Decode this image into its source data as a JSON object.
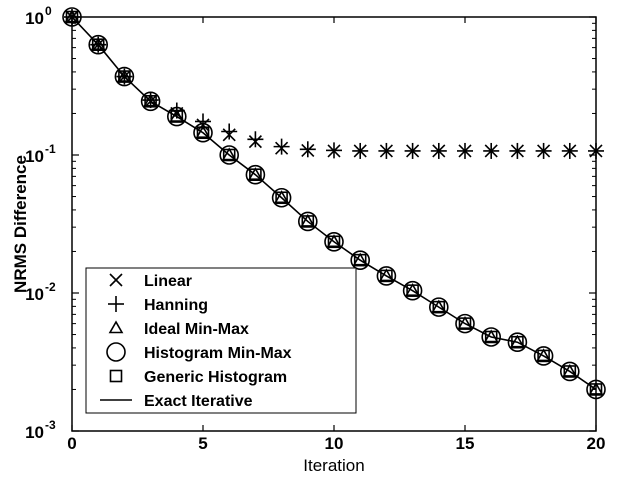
{
  "chart_data": {
    "type": "line",
    "xlabel": "Iteration",
    "ylabel": "NRMS Difference",
    "xlim": [
      0,
      20
    ],
    "ylim": [
      0.001,
      1
    ],
    "yscale": "log",
    "xticks": [
      0,
      5,
      10,
      15,
      20
    ],
    "xtick_labels": [
      "0",
      "5",
      "10",
      "15",
      "20"
    ],
    "yticks": [
      0.001,
      0.01,
      0.1,
      1
    ],
    "ytick_labels": [
      {
        "base": "10",
        "exp": "-3"
      },
      {
        "base": "10",
        "exp": "-2"
      },
      {
        "base": "10",
        "exp": "-1"
      },
      {
        "base": "10",
        "exp": "0"
      }
    ],
    "grid": false,
    "legend_position": "bottom-left",
    "x": [
      0,
      1,
      2,
      3,
      4,
      5,
      6,
      7,
      8,
      9,
      10,
      11,
      12,
      13,
      14,
      15,
      16,
      17,
      18,
      19,
      20
    ],
    "series": [
      {
        "name": "Linear",
        "marker": "x",
        "values": [
          1.0,
          0.63,
          0.37,
          0.245,
          0.2,
          0.165,
          0.14,
          0.125,
          0.112,
          0.108,
          0.107,
          0.107,
          0.107,
          0.107,
          0.107,
          0.107,
          0.107,
          0.107,
          0.107,
          0.107,
          0.107
        ]
      },
      {
        "name": "Hanning",
        "marker": "+",
        "values": [
          1.0,
          0.63,
          0.37,
          0.25,
          0.21,
          0.175,
          0.148,
          0.13,
          0.115,
          0.11,
          0.108,
          0.107,
          0.107,
          0.107,
          0.107,
          0.107,
          0.107,
          0.107,
          0.107,
          0.107,
          0.107
        ]
      },
      {
        "name": "Ideal Min-Max",
        "marker": "triangle",
        "values": [
          1.0,
          0.63,
          0.37,
          0.245,
          0.19,
          0.145,
          0.1,
          0.072,
          0.049,
          0.033,
          0.0235,
          0.0173,
          0.0133,
          0.0104,
          0.0079,
          0.006,
          0.0048,
          0.0044,
          0.0035,
          0.0027,
          0.002
        ]
      },
      {
        "name": "Histogram Min-Max",
        "marker": "circle",
        "values": [
          1.0,
          0.63,
          0.37,
          0.245,
          0.19,
          0.145,
          0.1,
          0.072,
          0.049,
          0.033,
          0.0235,
          0.0173,
          0.0133,
          0.0104,
          0.0079,
          0.006,
          0.0048,
          0.0044,
          0.0035,
          0.0027,
          0.002
        ]
      },
      {
        "name": "Generic Histogram",
        "marker": "square",
        "values": [
          1.0,
          0.63,
          0.37,
          0.245,
          0.19,
          0.145,
          0.1,
          0.072,
          0.049,
          0.033,
          0.0235,
          0.0173,
          0.0133,
          0.0104,
          0.0079,
          0.006,
          0.0048,
          0.0044,
          0.0035,
          0.0027,
          0.002
        ]
      },
      {
        "name": "Exact Iterative",
        "marker": "line",
        "values": [
          1.0,
          0.63,
          0.37,
          0.245,
          0.19,
          0.145,
          0.1,
          0.072,
          0.049,
          0.033,
          0.0235,
          0.0173,
          0.0133,
          0.0104,
          0.0079,
          0.006,
          0.0048,
          0.0044,
          0.0035,
          0.0027,
          0.002
        ]
      }
    ]
  }
}
